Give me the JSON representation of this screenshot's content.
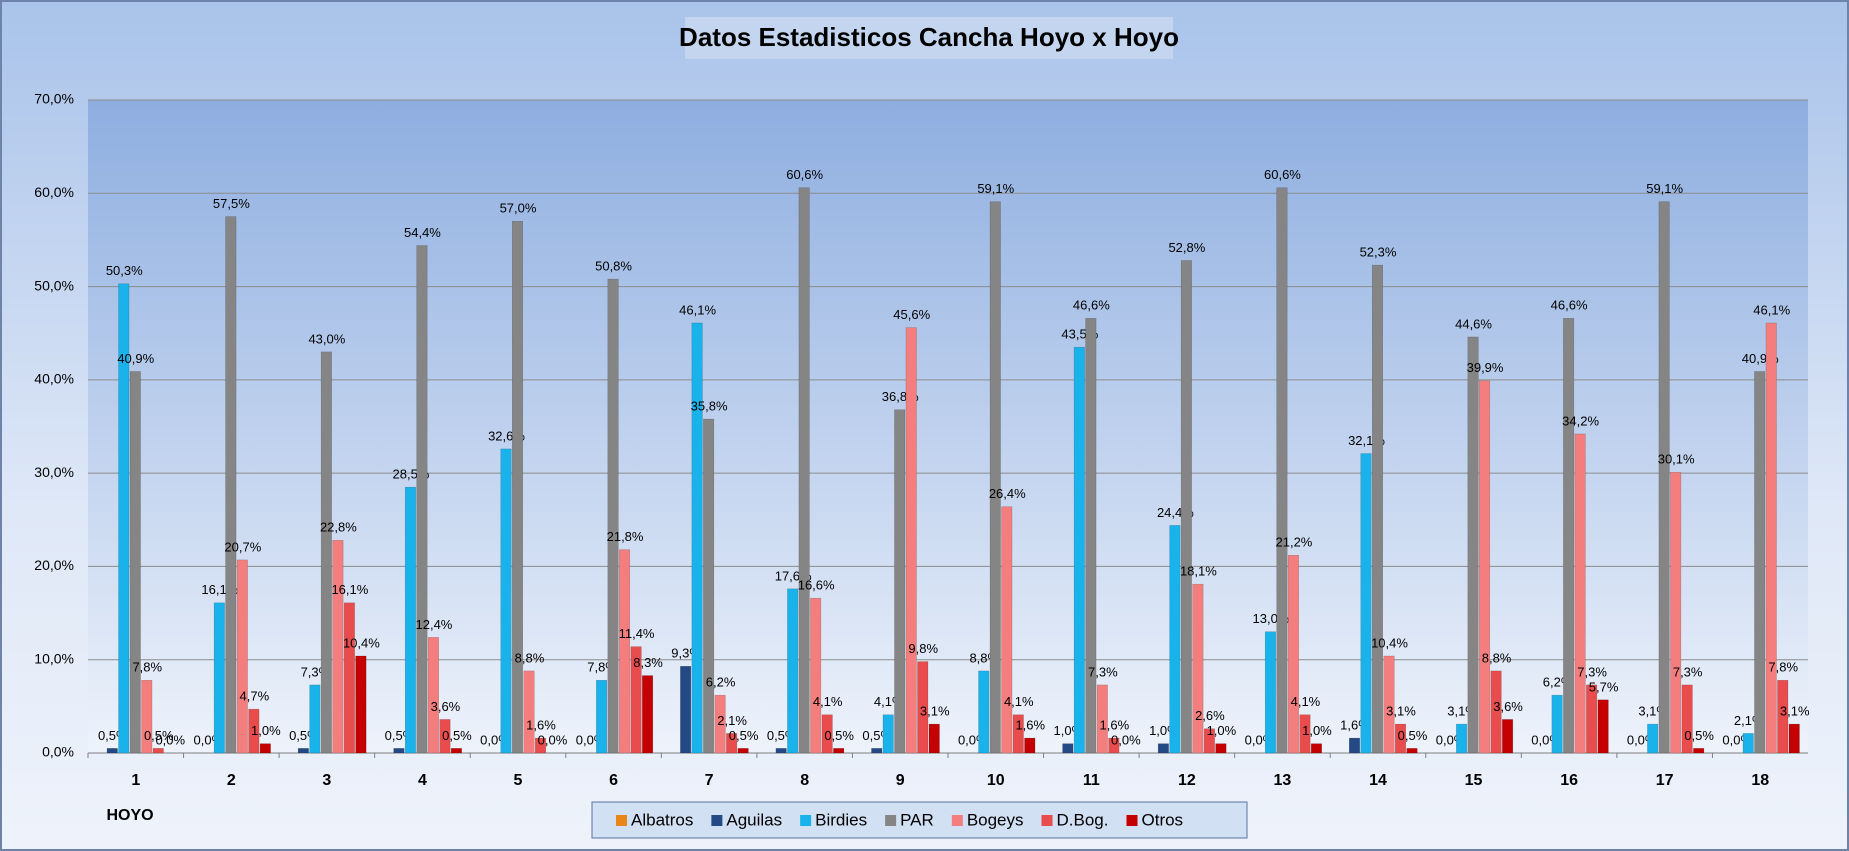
{
  "chart_data": {
    "type": "bar",
    "title": "Datos Estadisticos Cancha Hoyo x Hoyo",
    "x_label": "HOYO",
    "categories": [
      "1",
      "2",
      "3",
      "4",
      "5",
      "6",
      "7",
      "8",
      "9",
      "10",
      "11",
      "12",
      "13",
      "14",
      "15",
      "16",
      "17",
      "18"
    ],
    "ylim": [
      0,
      70
    ],
    "yticks": [
      {
        "value": 0,
        "label": "0,0%"
      },
      {
        "value": 10,
        "label": "10,0%"
      },
      {
        "value": 20,
        "label": "20,0%"
      },
      {
        "value": 30,
        "label": "30,0%"
      },
      {
        "value": 40,
        "label": "40,0%"
      },
      {
        "value": 50,
        "label": "50,0%"
      },
      {
        "value": 60,
        "label": "60,0%"
      },
      {
        "value": 70,
        "label": "70,0%"
      }
    ],
    "grid": true,
    "legend": "bottom",
    "series": [
      {
        "name": "Albatros",
        "color": "#e8861a",
        "values": [
          0,
          0,
          0,
          0,
          0,
          0,
          0,
          0,
          0,
          0,
          0,
          0,
          0,
          0,
          0,
          0,
          0,
          0
        ]
      },
      {
        "name": "Aguilas",
        "color": "#244a86",
        "values": [
          0.5,
          0,
          0.5,
          0.5,
          0,
          0,
          9.3,
          0.5,
          0.5,
          0,
          1.0,
          1.0,
          0,
          1.6,
          0,
          0,
          0,
          0
        ],
        "value_labels": [
          "0,5%",
          "0,0%",
          "0,5%",
          "0,5%",
          "0,0%",
          "0,0%",
          "9,3%",
          "0,5%",
          "0,5%",
          "0,0%",
          "1,0%",
          "1,0%",
          "0,0%",
          "1,6%",
          "0,0%",
          "0,0%",
          "0,0%",
          "0,0%"
        ]
      },
      {
        "name": "Birdies",
        "color": "#1ab2ea",
        "values": [
          50.3,
          16.1,
          7.3,
          28.5,
          32.6,
          7.8,
          46.1,
          17.6,
          4.1,
          8.8,
          43.5,
          24.4,
          13.0,
          32.1,
          3.1,
          6.2,
          3.1,
          2.1
        ],
        "value_labels": [
          "50,3%",
          "16,1%",
          "7,3%",
          "28,5%",
          "32,6%",
          "7,8%",
          "46,1%",
          "17,6%",
          "4,1%",
          "8,8%",
          "43,5%",
          "24,4%",
          "13,0%",
          "32,1%",
          "3,1%",
          "6,2%",
          "3,1%",
          "2,1%"
        ]
      },
      {
        "name": "PAR",
        "color": "#858585",
        "values": [
          40.9,
          57.5,
          43.0,
          54.4,
          57.0,
          50.8,
          35.8,
          60.6,
          36.8,
          59.1,
          46.6,
          52.8,
          60.6,
          52.3,
          44.6,
          46.6,
          59.1,
          40.9
        ],
        "value_labels": [
          "40,9%",
          "57,5%",
          "43,0%",
          "54,4%",
          "57,0%",
          "50,8%",
          "35,8%",
          "60,6%",
          "36,8%",
          "59,1%",
          "46,6%",
          "52,8%",
          "60,6%",
          "52,3%",
          "44,6%",
          "46,6%",
          "59,1%",
          "40,9%"
        ]
      },
      {
        "name": "Bogeys",
        "color": "#f47e7e",
        "values": [
          7.8,
          20.7,
          22.8,
          12.4,
          8.8,
          21.8,
          6.2,
          16.6,
          45.6,
          26.4,
          7.3,
          18.1,
          21.2,
          10.4,
          39.9,
          34.2,
          30.1,
          46.1
        ],
        "value_labels": [
          "7,8%",
          "20,7%",
          "22,8%",
          "12,4%",
          "8,8%",
          "21,8%",
          "6,2%",
          "16,6%",
          "45,6%",
          "26,4%",
          "7,3%",
          "18,1%",
          "21,2%",
          "10,4%",
          "39,9%",
          "34,2%",
          "30,1%",
          "46,1%"
        ]
      },
      {
        "name": "D.Bog.",
        "color": "#e84c4c",
        "values": [
          0.5,
          4.7,
          16.1,
          3.6,
          1.6,
          11.4,
          2.1,
          4.1,
          9.8,
          4.1,
          1.6,
          2.6,
          4.1,
          3.1,
          8.8,
          7.3,
          7.3,
          7.8
        ],
        "value_labels": [
          "0,5%",
          "4,7%",
          "16,1%",
          "3,6%",
          "1,6%",
          "11,4%",
          "2,1%",
          "4,1%",
          "9,8%",
          "4,1%",
          "1,6%",
          "2,6%",
          "4,1%",
          "3,1%",
          "8,8%",
          "7,3%",
          "7,3%",
          "7,8%"
        ]
      },
      {
        "name": "Otros",
        "color": "#c40000",
        "values": [
          0,
          1.0,
          10.4,
          0.5,
          0,
          8.3,
          0.5,
          0.5,
          3.1,
          1.6,
          0,
          1.0,
          1.0,
          0.5,
          3.6,
          5.7,
          0.5,
          3.1
        ],
        "value_labels": [
          "0,0%",
          "1,0%",
          "10,4%",
          "0,5%",
          "0,0%",
          "8,3%",
          "0,5%",
          "0,5%",
          "3,1%",
          "1,6%",
          "0,0%",
          "1,0%",
          "1,0%",
          "0,5%",
          "3,6%",
          "5,7%",
          "0,5%",
          "3,1%"
        ]
      }
    ]
  }
}
